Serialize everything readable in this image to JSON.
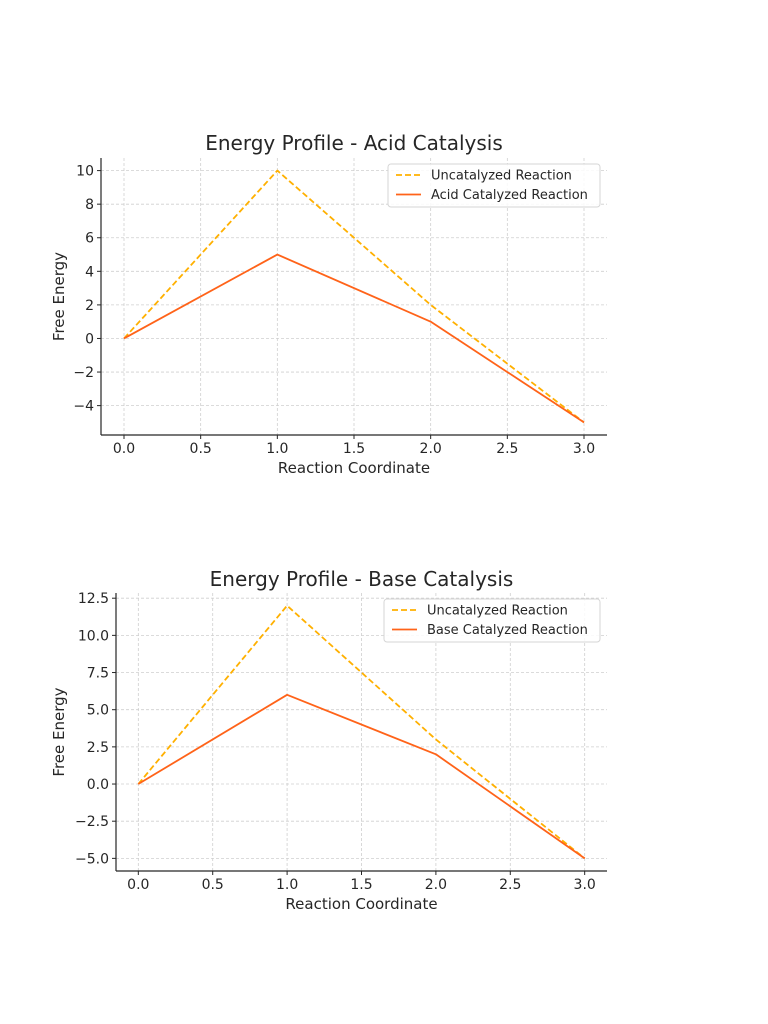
{
  "chart_data": [
    {
      "type": "line",
      "title": "Energy Profile - Acid Catalysis",
      "xlabel": "Reaction Coordinate",
      "ylabel": "Free Energy",
      "xlim": [
        -0.15,
        3.15
      ],
      "ylim": [
        -5.75,
        10.75
      ],
      "xticks": [
        0,
        0.5,
        1,
        1.5,
        2,
        2.5,
        3
      ],
      "xtick_labels": [
        "0.0",
        "0.5",
        "1.0",
        "1.5",
        "2.0",
        "2.5",
        "3.0"
      ],
      "yticks": [
        -4,
        -2,
        0,
        2,
        4,
        6,
        8,
        10
      ],
      "ytick_labels": [
        "−4",
        "−2",
        "0",
        "2",
        "4",
        "6",
        "8",
        "10"
      ],
      "grid": true,
      "legend_position": "top-right",
      "x": [
        0,
        1,
        2,
        3
      ],
      "series": [
        {
          "name": "Uncatalyzed Reaction",
          "values": [
            0,
            10,
            2,
            -5
          ],
          "color": "#FFB000",
          "style": "dashed"
        },
        {
          "name": "Acid Catalyzed Reaction",
          "values": [
            0,
            5,
            1,
            -5
          ],
          "color": "#FF6319",
          "style": "solid"
        }
      ]
    },
    {
      "type": "line",
      "title": "Energy Profile - Base Catalysis",
      "xlabel": "Reaction Coordinate",
      "ylabel": "Free Energy",
      "xlim": [
        -0.15,
        3.15
      ],
      "ylim": [
        -5.85,
        12.85
      ],
      "xticks": [
        0,
        0.5,
        1,
        1.5,
        2,
        2.5,
        3
      ],
      "xtick_labels": [
        "0.0",
        "0.5",
        "1.0",
        "1.5",
        "2.0",
        "2.5",
        "3.0"
      ],
      "yticks": [
        -5,
        -2.5,
        0,
        2.5,
        5,
        7.5,
        10,
        12.5
      ],
      "ytick_labels": [
        "−5.0",
        "−2.5",
        "0.0",
        "2.5",
        "5.0",
        "7.5",
        "10.0",
        "12.5"
      ],
      "grid": true,
      "legend_position": "top-right",
      "x": [
        0,
        1,
        2,
        3
      ],
      "series": [
        {
          "name": "Uncatalyzed Reaction",
          "values": [
            0,
            12,
            3,
            -5
          ],
          "color": "#FFB000",
          "style": "dashed"
        },
        {
          "name": "Base Catalyzed Reaction",
          "values": [
            0,
            6,
            2,
            -5
          ],
          "color": "#FF6319",
          "style": "solid"
        }
      ]
    }
  ]
}
